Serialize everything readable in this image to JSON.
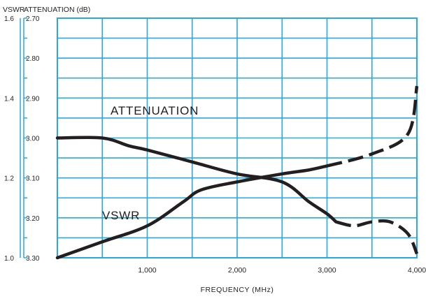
{
  "chart_data": {
    "type": "line",
    "axis_headers": {
      "left_outer": "VSWR",
      "left_inner": "ATTENUATION (dB)"
    },
    "xlabel": "FREQUENCY (MHz)",
    "xlim": [
      0,
      4000
    ],
    "x_ticks": [
      {
        "value": 1000,
        "label": "1,000"
      },
      {
        "value": 2000,
        "label": "2,000"
      },
      {
        "value": 3000,
        "label": "3,000"
      },
      {
        "value": 4000,
        "label": "4,000"
      }
    ],
    "vswr_axis": {
      "ylim": [
        1.0,
        1.6
      ],
      "ticks": [
        {
          "value": 1.6,
          "label": "1.6"
        },
        {
          "value": 1.4,
          "label": "1.4"
        },
        {
          "value": 1.2,
          "label": "1.2"
        },
        {
          "value": 1.0,
          "label": "1.0"
        }
      ]
    },
    "attenuation_axis": {
      "ylim": [
        3.3,
        2.7
      ],
      "inverted": true,
      "ticks": [
        {
          "value": 2.7,
          "label": "2.70"
        },
        {
          "value": 2.8,
          "label": "2.80"
        },
        {
          "value": 2.9,
          "label": "2.90"
        },
        {
          "value": 3.0,
          "label": "3.00"
        },
        {
          "value": 3.1,
          "label": "3.10"
        },
        {
          "value": 3.2,
          "label": "3.20"
        },
        {
          "value": 3.3,
          "label": "3.30"
        }
      ]
    },
    "grid": true,
    "grid_color": "#29a9e0",
    "line_color": "#231f20",
    "series": [
      {
        "name": "ATTENUATION",
        "axis": "attenuation",
        "solid": [
          [
            0,
            3.0
          ],
          [
            500,
            3.0
          ],
          [
            800,
            3.02
          ],
          [
            1000,
            3.03
          ],
          [
            1500,
            3.06
          ],
          [
            2000,
            3.09
          ],
          [
            2500,
            3.11
          ],
          [
            2800,
            3.16
          ],
          [
            3000,
            3.19
          ],
          [
            3100,
            3.21
          ]
        ],
        "dashed": [
          [
            3100,
            3.21
          ],
          [
            3300,
            3.22
          ],
          [
            3500,
            3.21
          ],
          [
            3700,
            3.21
          ],
          [
            3900,
            3.24
          ],
          [
            4000,
            3.29
          ]
        ]
      },
      {
        "name": "VSWR",
        "axis": "vswr",
        "solid": [
          [
            0,
            1.0
          ],
          [
            500,
            1.04
          ],
          [
            1000,
            1.08
          ],
          [
            1400,
            1.14
          ],
          [
            1600,
            1.17
          ],
          [
            2000,
            1.19
          ],
          [
            2500,
            1.21
          ],
          [
            2800,
            1.22
          ],
          [
            3000,
            1.23
          ]
        ],
        "dashed": [
          [
            3000,
            1.23
          ],
          [
            3500,
            1.26
          ],
          [
            3900,
            1.31
          ],
          [
            4000,
            1.43
          ]
        ]
      }
    ]
  }
}
